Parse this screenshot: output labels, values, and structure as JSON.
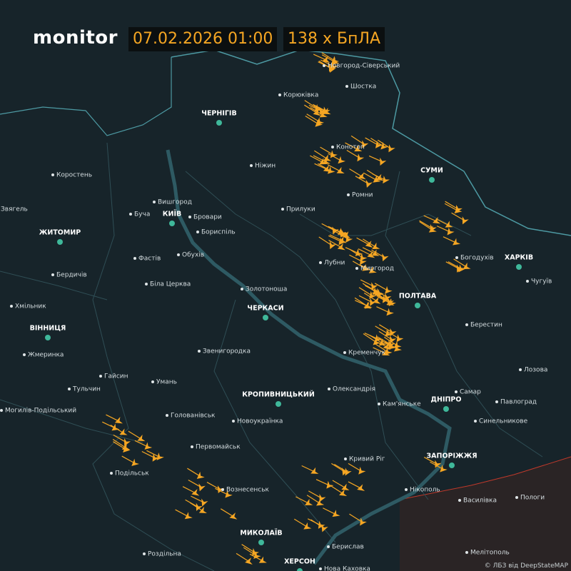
{
  "header": {
    "brand": "monitor",
    "datetime": "07.02.2026 01:00",
    "count": "138 х БпЛА"
  },
  "cities": [
    {
      "label": "ЧЕРНІГІВ",
      "major": true
    },
    {
      "label": "СУМИ",
      "major": true
    },
    {
      "label": "ХАРКІВ",
      "major": true
    },
    {
      "label": "ЖИТОМИР",
      "major": true
    },
    {
      "label": "КИЇВ",
      "major": true
    },
    {
      "label": "ЧЕРКАСИ",
      "major": true
    },
    {
      "label": "ПОЛТАВА",
      "major": true
    },
    {
      "label": "ВІННИЦЯ",
      "major": true
    },
    {
      "label": "КРОПИВНИЦЬКИЙ",
      "major": true
    },
    {
      "label": "ДНІПРО",
      "major": true
    },
    {
      "label": "ЗАПОРІЖЖЯ",
      "major": true
    },
    {
      "label": "МИКОЛАЇВ",
      "major": true
    },
    {
      "label": "ХЕРСОН",
      "major": true
    },
    {
      "label": "Новгород-Сіверський",
      "major": false
    },
    {
      "label": "Корюківка",
      "major": false
    },
    {
      "label": "Шостка",
      "major": false
    },
    {
      "label": "Ніжин",
      "major": false
    },
    {
      "label": "Конотоп",
      "major": false
    },
    {
      "label": "Ромни",
      "major": false
    },
    {
      "label": "Прилуки",
      "major": false
    },
    {
      "label": "Коростень",
      "major": false
    },
    {
      "label": "Звягель",
      "major": false
    },
    {
      "label": "Вишгород",
      "major": false
    },
    {
      "label": "Буча",
      "major": false
    },
    {
      "label": "Бровари",
      "major": false
    },
    {
      "label": "Бориспіль",
      "major": false
    },
    {
      "label": "Фастів",
      "major": false
    },
    {
      "label": "Обухів",
      "major": false
    },
    {
      "label": "Бердичів",
      "major": false
    },
    {
      "label": "Біла Церква",
      "major": false
    },
    {
      "label": "Лубни",
      "major": false
    },
    {
      "label": "Миргород",
      "major": false
    },
    {
      "label": "Богодухів",
      "major": false
    },
    {
      "label": "Чугуїв",
      "major": false
    },
    {
      "label": "Золотоноша",
      "major": false
    },
    {
      "label": "Хмільник",
      "major": false
    },
    {
      "label": "Берестин",
      "major": false
    },
    {
      "label": "Кременчук",
      "major": false
    },
    {
      "label": "Звенигородка",
      "major": false
    },
    {
      "label": "Жмеринка",
      "major": false
    },
    {
      "label": "Гайсин",
      "major": false
    },
    {
      "label": "Умань",
      "major": false
    },
    {
      "label": "Лозова",
      "major": false
    },
    {
      "label": "Тульчин",
      "major": false
    },
    {
      "label": "Олександрія",
      "major": false
    },
    {
      "label": "Самар",
      "major": false
    },
    {
      "label": "Кам'янське",
      "major": false
    },
    {
      "label": "Павлоград",
      "major": false
    },
    {
      "label": "Могилів-Подільський",
      "major": false
    },
    {
      "label": "Голованівськ",
      "major": false
    },
    {
      "label": "Новоукраїнка",
      "major": false
    },
    {
      "label": "Синельникове",
      "major": false
    },
    {
      "label": "Первомайськ",
      "major": false
    },
    {
      "label": "Кривий Ріг",
      "major": false
    },
    {
      "label": "Подільськ",
      "major": false
    },
    {
      "label": "Вознесенськ",
      "major": false
    },
    {
      "label": "Нікополь",
      "major": false
    },
    {
      "label": "Василівка",
      "major": false
    },
    {
      "label": "Пологи",
      "major": false
    },
    {
      "label": "Роздільна",
      "major": false
    },
    {
      "label": "Берислав",
      "major": false
    },
    {
      "label": "Мелітополь",
      "major": false
    },
    {
      "label": "Нова Каховка",
      "major": false
    }
  ],
  "attribution": "© ЛБЗ від DeepStateMAP"
}
